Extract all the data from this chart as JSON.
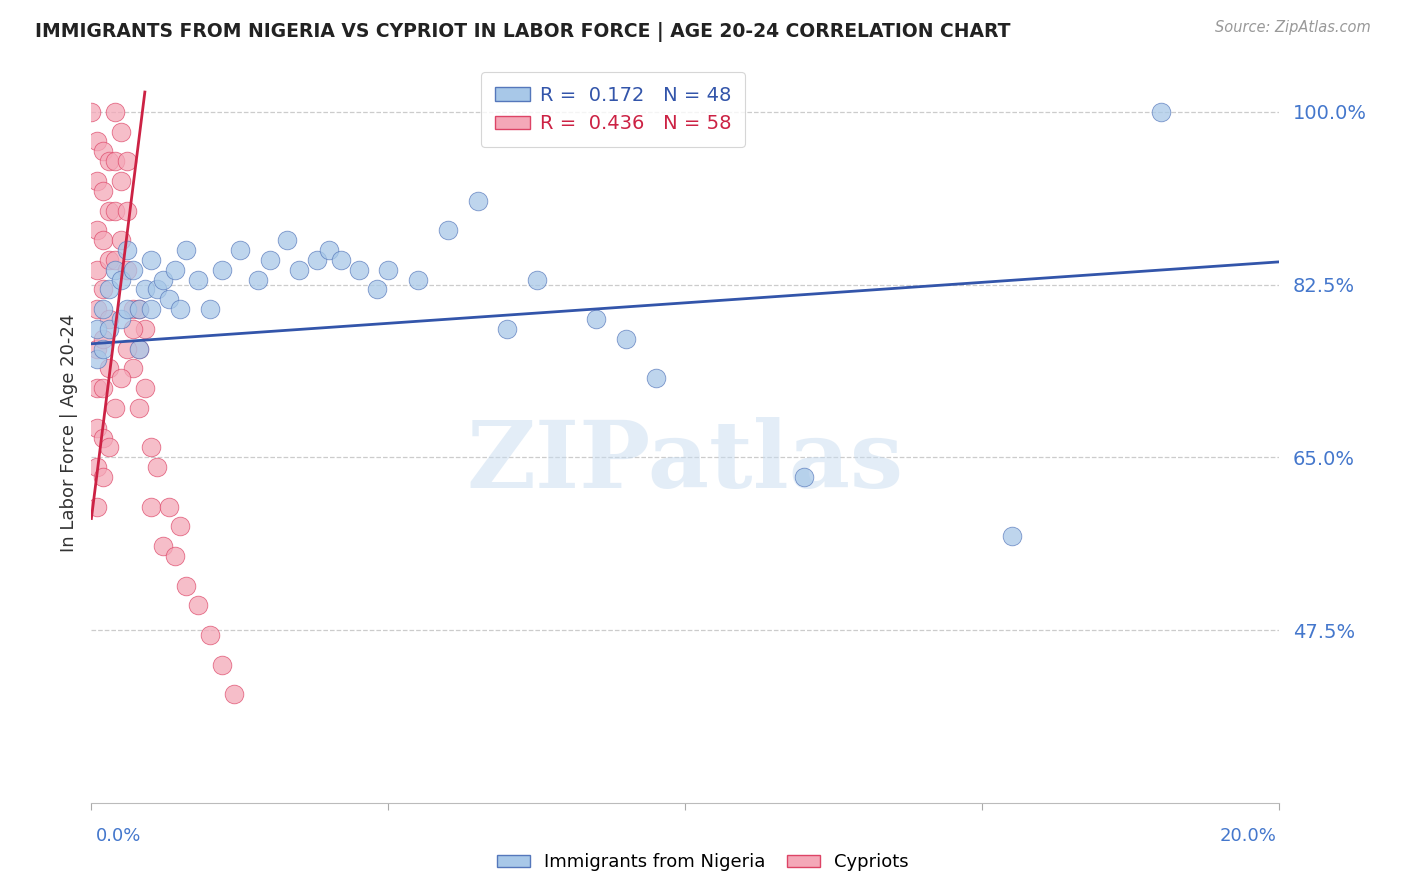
{
  "title": "IMMIGRANTS FROM NIGERIA VS CYPRIOT IN LABOR FORCE | AGE 20-24 CORRELATION CHART",
  "source": "Source: ZipAtlas.com",
  "ylabel": "In Labor Force | Age 20-24",
  "watermark": "ZIPatlas",
  "right_ytick_labels": [
    "100.0%",
    "82.5%",
    "65.0%",
    "47.5%"
  ],
  "right_ytick_values": [
    1.0,
    0.825,
    0.65,
    0.475
  ],
  "xlim": [
    0.0,
    0.2
  ],
  "ylim": [
    0.3,
    1.05
  ],
  "blue_R": "0.172",
  "blue_N": "48",
  "pink_R": "0.436",
  "pink_N": "58",
  "blue_color": "#A8C8E8",
  "pink_color": "#F4A8B8",
  "blue_edge_color": "#5577BB",
  "pink_edge_color": "#DD4466",
  "blue_line_color": "#3355AA",
  "pink_line_color": "#CC2244",
  "blue_scatter_x": [
    0.001,
    0.001,
    0.002,
    0.002,
    0.003,
    0.003,
    0.004,
    0.005,
    0.005,
    0.006,
    0.006,
    0.007,
    0.008,
    0.008,
    0.009,
    0.01,
    0.01,
    0.011,
    0.012,
    0.013,
    0.014,
    0.015,
    0.016,
    0.018,
    0.02,
    0.022,
    0.025,
    0.028,
    0.03,
    0.033,
    0.035,
    0.038,
    0.04,
    0.042,
    0.045,
    0.048,
    0.05,
    0.055,
    0.06,
    0.065,
    0.07,
    0.075,
    0.085,
    0.09,
    0.095,
    0.12,
    0.155,
    0.18
  ],
  "blue_scatter_y": [
    0.78,
    0.75,
    0.8,
    0.76,
    0.82,
    0.78,
    0.84,
    0.83,
    0.79,
    0.86,
    0.8,
    0.84,
    0.8,
    0.76,
    0.82,
    0.85,
    0.8,
    0.82,
    0.83,
    0.81,
    0.84,
    0.8,
    0.86,
    0.83,
    0.8,
    0.84,
    0.86,
    0.83,
    0.85,
    0.87,
    0.84,
    0.85,
    0.86,
    0.85,
    0.84,
    0.82,
    0.84,
    0.83,
    0.88,
    0.91,
    0.78,
    0.83,
    0.79,
    0.77,
    0.73,
    0.63,
    0.57,
    1.0
  ],
  "pink_scatter_x": [
    0.0,
    0.001,
    0.001,
    0.001,
    0.001,
    0.001,
    0.001,
    0.001,
    0.001,
    0.001,
    0.002,
    0.002,
    0.002,
    0.002,
    0.002,
    0.002,
    0.002,
    0.003,
    0.003,
    0.003,
    0.003,
    0.003,
    0.004,
    0.004,
    0.004,
    0.004,
    0.005,
    0.005,
    0.005,
    0.006,
    0.006,
    0.006,
    0.007,
    0.007,
    0.008,
    0.008,
    0.009,
    0.009,
    0.01,
    0.01,
    0.011,
    0.012,
    0.013,
    0.014,
    0.015,
    0.016,
    0.018,
    0.02,
    0.022,
    0.024,
    0.001,
    0.002,
    0.003,
    0.004,
    0.005,
    0.006,
    0.007,
    0.008
  ],
  "pink_scatter_y": [
    1.0,
    0.97,
    0.93,
    0.88,
    0.84,
    0.8,
    0.76,
    0.72,
    0.68,
    0.64,
    0.96,
    0.92,
    0.87,
    0.82,
    0.77,
    0.72,
    0.67,
    0.95,
    0.9,
    0.85,
    0.79,
    0.74,
    1.0,
    0.95,
    0.9,
    0.85,
    0.98,
    0.93,
    0.87,
    0.95,
    0.9,
    0.84,
    0.8,
    0.74,
    0.76,
    0.7,
    0.78,
    0.72,
    0.66,
    0.6,
    0.64,
    0.56,
    0.6,
    0.55,
    0.58,
    0.52,
    0.5,
    0.47,
    0.44,
    0.41,
    0.6,
    0.63,
    0.66,
    0.7,
    0.73,
    0.76,
    0.78,
    0.8
  ],
  "blue_regline_x": [
    0.0,
    0.2
  ],
  "blue_regline_y": [
    0.765,
    0.848
  ],
  "pink_regline_x": [
    0.0,
    0.009
  ],
  "pink_regline_y": [
    0.588,
    1.02
  ],
  "xtick_positions": [
    0.0,
    0.05,
    0.1,
    0.15,
    0.2
  ],
  "grid_color": "#CCCCCC",
  "background_color": "#FFFFFF"
}
